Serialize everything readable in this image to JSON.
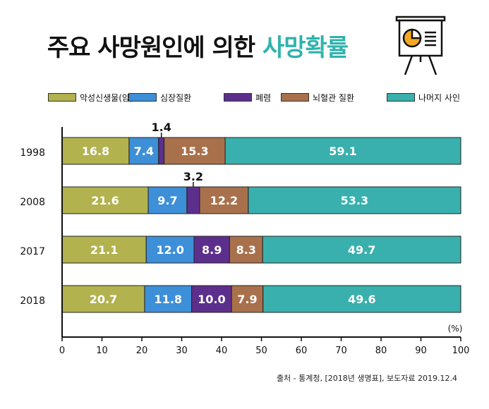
{
  "header": {
    "title_main": "주요 사망원인에 의한",
    "title_accent": "사망확률",
    "icon": "presentation-board-icon"
  },
  "source_text": "출처 - 통계청, [2018년 생명표], 보도자료 2019.12.4",
  "colors": {
    "accent": "#2fb3ad",
    "cancer": "#b2b24f",
    "heart": "#3d8fd8",
    "pneumonia": "#5d2f8c",
    "cerebro": "#a8714c",
    "other": "#39b0ad"
  },
  "chart_data": {
    "type": "bar",
    "orientation": "horizontal",
    "stacked": true,
    "categories": [
      "1998",
      "2008",
      "2017",
      "2018"
    ],
    "series": [
      {
        "name": "악성신생물(암)",
        "values": [
          16.8,
          21.6,
          21.1,
          20.7
        ]
      },
      {
        "name": "심장질환",
        "values": [
          7.4,
          9.7,
          12.0,
          11.8
        ]
      },
      {
        "name": "폐렴",
        "values": [
          1.4,
          3.2,
          8.9,
          10.0
        ]
      },
      {
        "name": "뇌혈관 질환",
        "values": [
          15.3,
          12.2,
          8.3,
          7.9
        ]
      },
      {
        "name": "나머지 사인",
        "values": [
          59.1,
          53.3,
          49.7,
          49.6
        ]
      }
    ],
    "value_labels": [
      [
        "16.8",
        "7.4",
        "1.4",
        "15.3",
        "59.1"
      ],
      [
        "21.6",
        "9.7",
        "3.2",
        "12.2",
        "53.3"
      ],
      [
        "21.1",
        "12.0",
        "8.9",
        "8.3",
        "49.7"
      ],
      [
        "20.7",
        "11.8",
        "10.0",
        "7.9",
        "49.6"
      ]
    ],
    "xlim": [
      0,
      100
    ],
    "xticks": [
      "0",
      "10",
      "20",
      "30",
      "40",
      "50",
      "60",
      "70",
      "80",
      "90",
      "100"
    ],
    "unit_label": "(%)",
    "legend_position": "top",
    "grid": false
  }
}
